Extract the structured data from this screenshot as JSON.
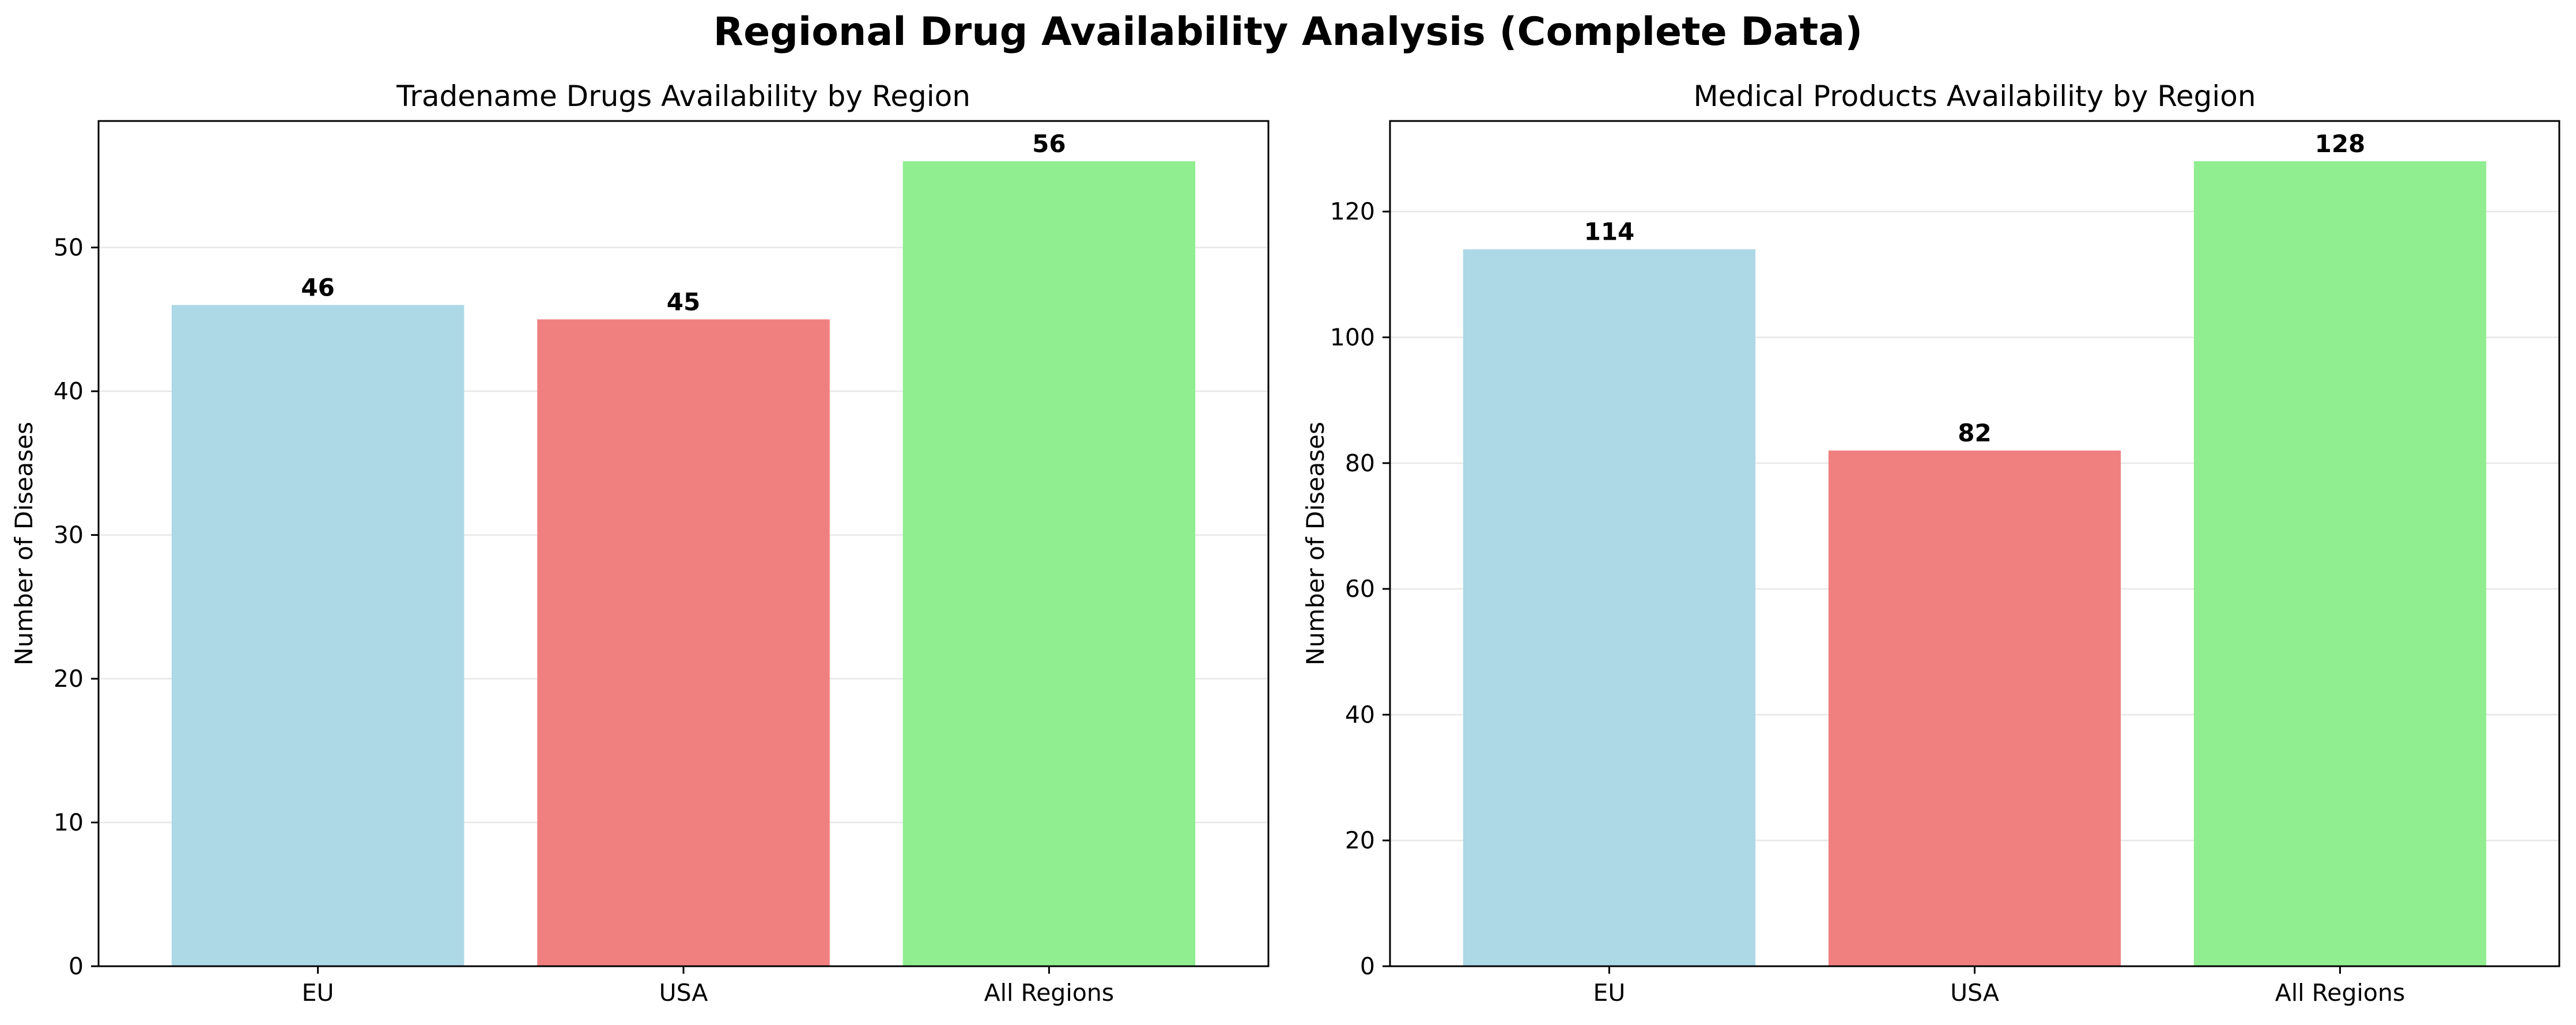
{
  "figure": {
    "suptitle": "Regional Drug Availability Analysis (Complete Data)"
  },
  "chart_data": [
    {
      "type": "bar",
      "title": "Tradename Drugs Availability by Region",
      "xlabel": "",
      "ylabel": "Number of Diseases",
      "categories": [
        "EU",
        "USA",
        "All Regions"
      ],
      "values": [
        46,
        45,
        56
      ],
      "colors": [
        "#add8e6",
        "#f08080",
        "#90ee90"
      ],
      "ylim": [
        0,
        58.8
      ],
      "yticks": [
        0,
        10,
        20,
        30,
        40,
        50
      ],
      "grid": "y",
      "legend": "none"
    },
    {
      "type": "bar",
      "title": "Medical Products Availability by Region",
      "xlabel": "",
      "ylabel": "Number of Diseases",
      "categories": [
        "EU",
        "USA",
        "All Regions"
      ],
      "values": [
        114,
        82,
        128
      ],
      "colors": [
        "#add8e6",
        "#f08080",
        "#90ee90"
      ],
      "ylim": [
        0,
        134.4
      ],
      "yticks": [
        0,
        20,
        40,
        60,
        80,
        100,
        120
      ],
      "grid": "y",
      "legend": "none"
    }
  ]
}
